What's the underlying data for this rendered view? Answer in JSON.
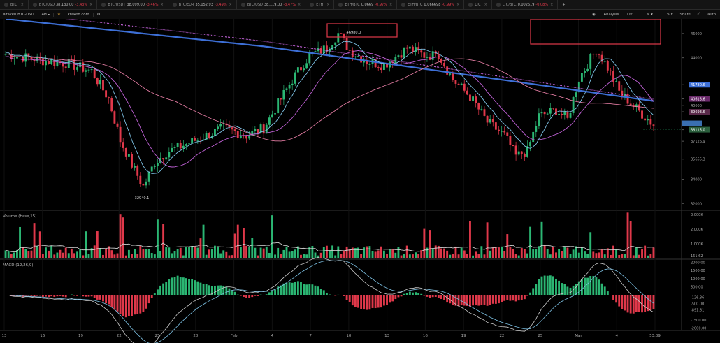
{
  "tickers": [
    {
      "symbol": "BTC",
      "price": "",
      "change": ""
    },
    {
      "symbol": "BTC/USD",
      "price": "38,130.00",
      "change": "-3.43%"
    },
    {
      "symbol": "BTC/USDT",
      "price": "38,099.00",
      "change": "-3.46%"
    },
    {
      "symbol": "BTC/EUR",
      "price": "35,052.93",
      "change": "-3.49%"
    },
    {
      "symbol": "BTC/USD",
      "price": "38,119.00",
      "change": "-3.47%"
    },
    {
      "symbol": "ETH",
      "price": "",
      "change": ""
    },
    {
      "symbol": "ETH/BTC",
      "price": "0.0669",
      "change": "-0.97%"
    },
    {
      "symbol": "ETH/BTC",
      "price": "0.066698",
      "change": "-0.99%"
    },
    {
      "symbol": "LTC",
      "price": "",
      "change": ""
    },
    {
      "symbol": "LTC/BTC",
      "price": "0.002619",
      "change": "-0.08%"
    }
  ],
  "toolbar": {
    "exchange": "Kraken BTC-USD",
    "interval": "4H",
    "site": "kraken.com",
    "analysis": "Analysis",
    "analysis_badge": "Off",
    "mode": "M",
    "share": "Share",
    "auto": "auto"
  },
  "colors": {
    "up": "#2bb673",
    "down": "#e0384a",
    "ma_long": "#3d6fd6",
    "ma_mid": "#e07aa0",
    "ma_short": "#c061d6",
    "ma_fast": "#7ec3e6"
  },
  "chart_data": [
    {
      "type": "candlestick",
      "title": "",
      "price_levels": [
        "46000",
        "44000",
        "41780.6",
        "40613.6",
        "40000",
        "39693.6",
        "38115.0",
        "37126.9",
        "35655.3",
        "34000",
        "32000"
      ],
      "annotations": [
        {
          "text": "46980.0"
        },
        {
          "text": "32940.1"
        }
      ],
      "x_tick_labels": [
        "13",
        "16",
        "19",
        "22",
        "25",
        "28",
        "Feb",
        "4",
        "7",
        "10",
        "13",
        "16",
        "19",
        "22",
        "25",
        "Mar",
        "4",
        "53:09"
      ],
      "ylim": [
        31500,
        47200
      ],
      "moving_averages": [
        "ma_long",
        "ma_mid",
        "ma_short",
        "ma_fast"
      ]
    },
    {
      "type": "bar",
      "title": "Volume (base,15)",
      "y_tick_labels": [
        "3.000K",
        "2.000K",
        "1.000K",
        "161.62"
      ],
      "ylim": [
        0,
        3200
      ]
    },
    {
      "type": "line",
      "title": "MACD (12,26,9)",
      "y_tick_labels": [
        "2000.00",
        "1500.00",
        "1000.00",
        "500.00",
        "-126.86",
        "-500.00",
        "-891.81",
        "-1500.00",
        "-2000.00"
      ],
      "ylim": [
        -2100,
        2100
      ]
    }
  ]
}
